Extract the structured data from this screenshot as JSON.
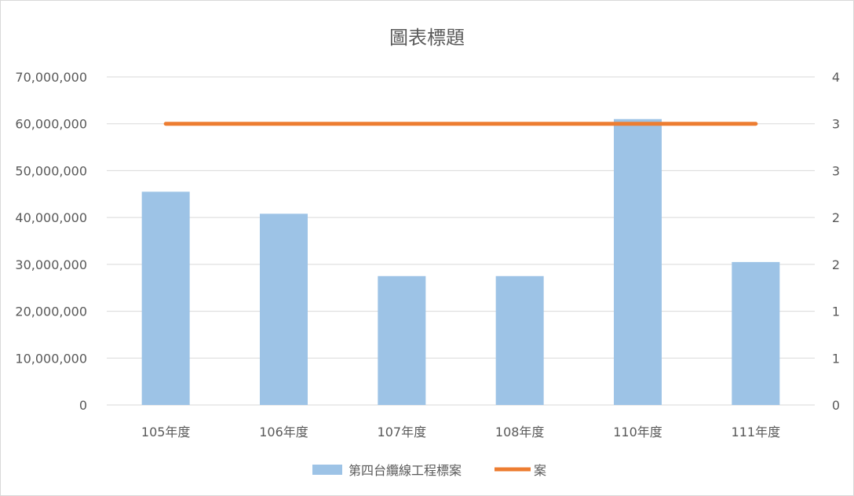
{
  "chart_data": {
    "type": "bar",
    "title": "圖表標題",
    "categories": [
      "105年度",
      "106年度",
      "107年度",
      "108年度",
      "110年度",
      "111年度"
    ],
    "series": [
      {
        "name": "第四台纜線工程標案",
        "type": "bar",
        "axis": "left",
        "color": "#9dc3e6",
        "values": [
          45500000,
          40800000,
          27500000,
          27500000,
          61000000,
          30500000
        ]
      },
      {
        "name": "案",
        "type": "line",
        "axis": "right",
        "color": "#ed7d31",
        "values": [
          3,
          3,
          3,
          3,
          3,
          3
        ]
      }
    ],
    "left_axis": {
      "ylim": [
        0,
        70000000
      ],
      "ticks": [
        "0",
        "10,000,000",
        "20,000,000",
        "30,000,000",
        "40,000,000",
        "50,000,000",
        "60,000,000",
        "70,000,000"
      ]
    },
    "right_axis": {
      "ylim": [
        0,
        3.5
      ],
      "ticks": [
        "0",
        "1",
        "1",
        "2",
        "2",
        "3",
        "3",
        "4"
      ]
    },
    "grid": true,
    "legend_position": "bottom"
  }
}
